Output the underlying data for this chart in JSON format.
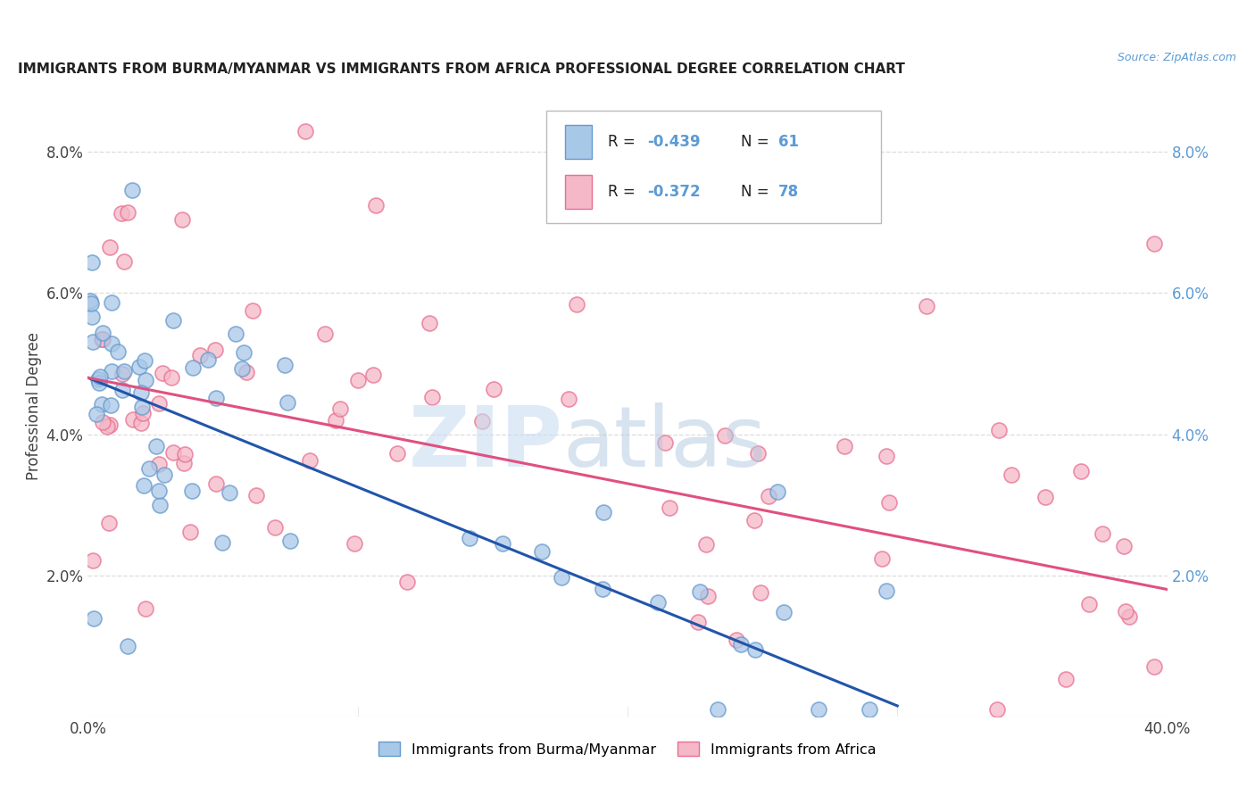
{
  "title": "IMMIGRANTS FROM BURMA/MYANMAR VS IMMIGRANTS FROM AFRICA PROFESSIONAL DEGREE CORRELATION CHART",
  "source": "Source: ZipAtlas.com",
  "ylabel": "Professional Degree",
  "xlim": [
    0.0,
    0.4
  ],
  "ylim": [
    0.0,
    0.088
  ],
  "yticks": [
    0.0,
    0.02,
    0.04,
    0.06,
    0.08
  ],
  "ytick_labels_left": [
    "",
    "2.0%",
    "4.0%",
    "6.0%",
    "8.0%"
  ],
  "ytick_labels_right": [
    "",
    "2.0%",
    "4.0%",
    "6.0%",
    "8.0%"
  ],
  "xticks": [
    0.0,
    0.1,
    0.2,
    0.3,
    0.4
  ],
  "xtick_labels": [
    "0.0%",
    "",
    "",
    "",
    "40.0%"
  ],
  "series1_color": "#A8C8E8",
  "series2_color": "#F4B8C8",
  "series1_edge": "#6699CC",
  "series2_edge": "#E87090",
  "series1_label": "Immigrants from Burma/Myanmar",
  "series2_label": "Immigrants from Africa",
  "line1_color": "#2255AA",
  "line2_color": "#E05080",
  "watermark_zip_color": "#C8DCF0",
  "watermark_atlas_color": "#B0C8E0",
  "background_color": "#FFFFFF",
  "grid_color": "#DDDDDD",
  "title_color": "#222222",
  "ylabel_color": "#444444",
  "ytick_left_color": "#444444",
  "ytick_right_color": "#5B9BD5",
  "xtick_color": "#444444",
  "source_color": "#5B9BD5",
  "legend_r1": "-0.439",
  "legend_n1": "61",
  "legend_r2": "-0.372",
  "legend_n2": "78",
  "legend_text_color": "#5B9BD5",
  "legend_label_color": "#222222",
  "line1_intercept": 0.048,
  "line1_slope": -0.155,
  "line2_intercept": 0.048,
  "line2_slope": -0.075
}
